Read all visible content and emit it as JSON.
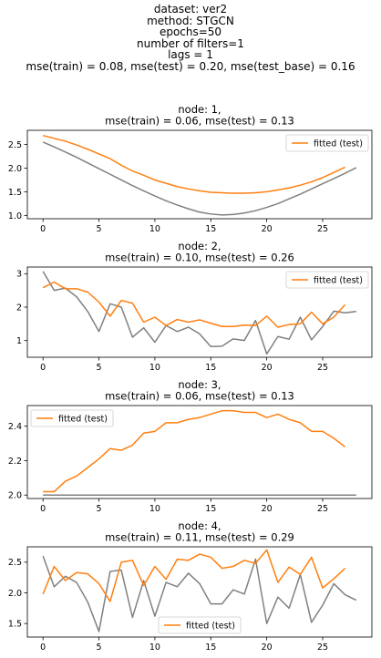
{
  "header": {
    "lines": [
      "dataset: ver2",
      "method: STGCN",
      "epochs=50",
      "number of filters=1",
      "lags = 1",
      "mse(train) = 0.08, mse(test) = 0.20, mse(test_base) = 0.16"
    ]
  },
  "colors": {
    "fitted": "#ff7f0e",
    "actual": "#808080"
  },
  "chart_data": [
    {
      "type": "line",
      "title": [
        "node: 1,",
        "mse(train) = 0.06, mse(test) = 0.13"
      ],
      "legend_loc": "upper-right",
      "xlim": [
        -1.4,
        29.4
      ],
      "ylim": [
        0.93,
        2.8
      ],
      "xticks": [
        0,
        5,
        10,
        15,
        20,
        25
      ],
      "yticks": [
        1.0,
        1.5,
        2.0,
        2.5
      ],
      "ytick_labels": [
        "1.0",
        "1.5",
        "2.0",
        "2.5"
      ],
      "series": [
        {
          "role": "actual",
          "x": [
            0,
            1,
            2,
            3,
            4,
            5,
            6,
            7,
            8,
            9,
            10,
            11,
            12,
            13,
            14,
            15,
            16,
            17,
            18,
            19,
            20,
            21,
            22,
            23,
            24,
            25,
            26,
            27,
            28
          ],
          "y": [
            2.55,
            2.45,
            2.34,
            2.23,
            2.11,
            1.99,
            1.87,
            1.75,
            1.63,
            1.52,
            1.41,
            1.31,
            1.22,
            1.14,
            1.07,
            1.03,
            1.01,
            1.02,
            1.05,
            1.1,
            1.17,
            1.25,
            1.35,
            1.45,
            1.56,
            1.67,
            1.78,
            1.89,
            2.01
          ]
        },
        {
          "role": "fitted",
          "name": "fitted (test)",
          "x": [
            0,
            1,
            2,
            3,
            4,
            5,
            6,
            7,
            8,
            9,
            10,
            11,
            12,
            13,
            14,
            15,
            16,
            17,
            18,
            19,
            20,
            21,
            22,
            23,
            24,
            25,
            26,
            27
          ],
          "y": [
            2.69,
            2.63,
            2.57,
            2.49,
            2.4,
            2.3,
            2.2,
            2.06,
            1.94,
            1.85,
            1.75,
            1.68,
            1.61,
            1.56,
            1.52,
            1.49,
            1.48,
            1.47,
            1.47,
            1.48,
            1.5,
            1.54,
            1.58,
            1.64,
            1.71,
            1.8,
            1.91,
            2.02
          ]
        }
      ]
    },
    {
      "type": "line",
      "title": [
        "node: 2,",
        "mse(train) = 0.10, mse(test) = 0.26"
      ],
      "legend_loc": "upper-right",
      "xlim": [
        -1.4,
        29.4
      ],
      "ylim": [
        0.5,
        3.2
      ],
      "xticks": [
        0,
        5,
        10,
        15,
        20,
        25
      ],
      "yticks": [
        1,
        2,
        3
      ],
      "ytick_labels": [
        "1",
        "2",
        "3"
      ],
      "series": [
        {
          "role": "actual",
          "x": [
            0,
            1,
            2,
            3,
            4,
            5,
            6,
            7,
            8,
            9,
            10,
            11,
            12,
            13,
            14,
            15,
            16,
            17,
            18,
            19,
            20,
            21,
            22,
            23,
            24,
            25,
            26,
            27,
            28
          ],
          "y": [
            3.07,
            2.5,
            2.57,
            2.31,
            1.87,
            1.27,
            2.1,
            2.0,
            1.1,
            1.38,
            0.95,
            1.45,
            1.27,
            1.4,
            1.2,
            0.82,
            0.83,
            1.05,
            1.0,
            1.6,
            0.6,
            1.12,
            1.04,
            1.7,
            1.02,
            1.42,
            1.88,
            1.83,
            1.87
          ]
        },
        {
          "role": "fitted",
          "name": "fitted (test)",
          "x": [
            0,
            1,
            2,
            3,
            4,
            5,
            6,
            7,
            8,
            9,
            10,
            11,
            12,
            13,
            14,
            15,
            16,
            17,
            18,
            19,
            20,
            21,
            22,
            23,
            24,
            25,
            26,
            27
          ],
          "y": [
            2.58,
            2.75,
            2.55,
            2.55,
            2.45,
            2.15,
            1.73,
            2.2,
            2.12,
            1.55,
            1.7,
            1.45,
            1.63,
            1.55,
            1.62,
            1.52,
            1.42,
            1.42,
            1.46,
            1.45,
            1.73,
            1.4,
            1.48,
            1.5,
            1.85,
            1.5,
            1.7,
            2.07
          ]
        }
      ]
    },
    {
      "type": "line",
      "title": [
        "node: 3,",
        "mse(train) = 0.06, mse(test) = 0.13"
      ],
      "legend_loc": "upper-left",
      "xlim": [
        -1.4,
        29.4
      ],
      "ylim": [
        1.98,
        2.52
      ],
      "xticks": [
        0,
        5,
        10,
        15,
        20,
        25
      ],
      "yticks": [
        2.0,
        2.2,
        2.4
      ],
      "ytick_labels": [
        "2.0",
        "2.2",
        "2.4"
      ],
      "series": [
        {
          "role": "actual",
          "x": [
            0,
            28
          ],
          "y": [
            2.0,
            2.0
          ]
        },
        {
          "role": "fitted",
          "name": "fitted (test)",
          "x": [
            0,
            1,
            2,
            3,
            4,
            5,
            6,
            7,
            8,
            9,
            10,
            11,
            12,
            13,
            14,
            15,
            16,
            17,
            18,
            19,
            20,
            21,
            22,
            23,
            24,
            25,
            26,
            27
          ],
          "y": [
            2.02,
            2.02,
            2.08,
            2.11,
            2.16,
            2.21,
            2.27,
            2.26,
            2.29,
            2.36,
            2.37,
            2.42,
            2.42,
            2.44,
            2.45,
            2.47,
            2.49,
            2.49,
            2.48,
            2.48,
            2.45,
            2.47,
            2.44,
            2.42,
            2.37,
            2.37,
            2.33,
            2.28
          ]
        }
      ]
    },
    {
      "type": "line",
      "title": [
        "node: 4,",
        "mse(train) = 0.11, mse(test) = 0.29"
      ],
      "legend_loc": "lower-center",
      "xlim": [
        -1.4,
        29.4
      ],
      "ylim": [
        1.28,
        2.75
      ],
      "xticks": [
        0,
        5,
        10,
        15,
        20,
        25
      ],
      "yticks": [
        1.5,
        2.0,
        2.5
      ],
      "ytick_labels": [
        "1.5",
        "2.0",
        "2.5"
      ],
      "series": [
        {
          "role": "actual",
          "x": [
            0,
            1,
            2,
            3,
            4,
            5,
            6,
            7,
            8,
            9,
            10,
            11,
            12,
            13,
            14,
            15,
            16,
            17,
            18,
            19,
            20,
            21,
            22,
            23,
            24,
            25,
            26,
            27,
            28
          ],
          "y": [
            2.6,
            2.1,
            2.27,
            2.17,
            1.85,
            1.37,
            2.35,
            2.37,
            1.6,
            2.2,
            1.62,
            2.17,
            2.1,
            2.32,
            2.15,
            1.82,
            1.82,
            2.05,
            1.98,
            2.55,
            1.5,
            1.93,
            1.75,
            2.3,
            1.52,
            1.8,
            2.15,
            1.97,
            1.88
          ]
        },
        {
          "role": "fitted",
          "name": "fitted (test)",
          "x": [
            0,
            1,
            2,
            3,
            4,
            5,
            6,
            7,
            8,
            9,
            10,
            11,
            12,
            13,
            14,
            15,
            16,
            17,
            18,
            19,
            20,
            21,
            22,
            23,
            24,
            25,
            26,
            27
          ],
          "y": [
            1.98,
            2.43,
            2.2,
            2.33,
            2.31,
            2.15,
            1.86,
            2.5,
            2.53,
            2.12,
            2.43,
            2.22,
            2.55,
            2.53,
            2.63,
            2.58,
            2.4,
            2.43,
            2.53,
            2.48,
            2.7,
            2.17,
            2.42,
            2.3,
            2.58,
            2.08,
            2.23,
            2.4
          ]
        }
      ]
    }
  ]
}
